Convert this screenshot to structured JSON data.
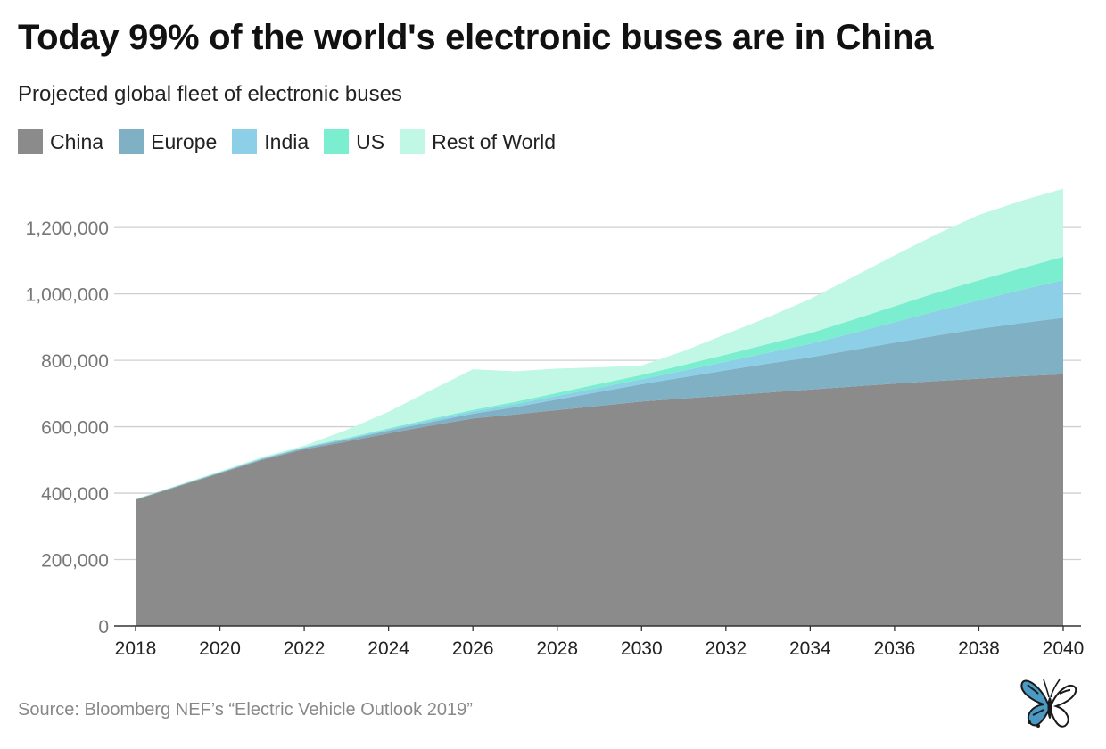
{
  "title": "Today 99% of the world's electronic buses are in China",
  "subtitle": "Projected global fleet of electronic buses",
  "source": "Source: Bloomberg NEF’s “Electric Vehicle Outlook 2019”",
  "logo_icon": "butterfly-icon",
  "colors": {
    "China": "#8b8b8c",
    "Europe": "#7fb0c3",
    "India": "#8ccfe6",
    "US": "#7ceed0",
    "Rest of World": "#c1f8e5"
  },
  "chart_data": {
    "type": "area",
    "stacked": true,
    "title": "Today 99% of the world's electronic buses are in China",
    "subtitle": "Projected global fleet of electronic buses",
    "x": [
      2018,
      2019,
      2020,
      2021,
      2022,
      2023,
      2024,
      2025,
      2026,
      2027,
      2028,
      2029,
      2030,
      2031,
      2032,
      2033,
      2034,
      2035,
      2036,
      2037,
      2038,
      2039,
      2040
    ],
    "x_ticks": [
      "2018",
      "2020",
      "2022",
      "2024",
      "2026",
      "2028",
      "2030",
      "2032",
      "2034",
      "2036",
      "2038",
      "2040"
    ],
    "y_ticks": [
      "0",
      "200,000",
      "400,000",
      "600,000",
      "800,000",
      "1,000,000",
      "1,200,000"
    ],
    "ylim": [
      0,
      1340000
    ],
    "grid": true,
    "legend_position": "top-left",
    "series": [
      {
        "name": "China",
        "values": [
          380000,
          420000,
          460000,
          500000,
          532000,
          555000,
          580000,
          603000,
          625000,
          637000,
          650000,
          663000,
          676000,
          685000,
          694000,
          703000,
          712000,
          721000,
          730000,
          738000,
          745000,
          752000,
          758000
        ]
      },
      {
        "name": "Europe",
        "values": [
          1000,
          1500,
          2000,
          3000,
          4000,
          6000,
          8000,
          11000,
          14000,
          22000,
          32000,
          42000,
          52000,
          64000,
          76000,
          87000,
          97000,
          110000,
          123000,
          137000,
          150000,
          160000,
          170000
        ]
      },
      {
        "name": "India",
        "values": [
          500,
          700,
          1000,
          1500,
          2000,
          3000,
          4000,
          5500,
          7000,
          9000,
          11000,
          13000,
          15000,
          20000,
          26000,
          33000,
          41000,
          51000,
          62000,
          74000,
          86000,
          100000,
          114000
        ]
      },
      {
        "name": "US",
        "values": [
          500,
          600,
          700,
          1000,
          1200,
          2000,
          3000,
          4000,
          5000,
          7000,
          9000,
          11000,
          13000,
          17000,
          21000,
          26000,
          32000,
          40000,
          48000,
          55000,
          60000,
          65000,
          70000
        ]
      },
      {
        "name": "Rest of World",
        "values": [
          1000,
          1500,
          2000,
          3000,
          4000,
          24000,
          50000,
          86000,
          122000,
          92000,
          73000,
          50000,
          28000,
          42000,
          62000,
          81000,
          103000,
          128000,
          153000,
          176000,
          197000,
          203000,
          205000
        ]
      }
    ]
  }
}
